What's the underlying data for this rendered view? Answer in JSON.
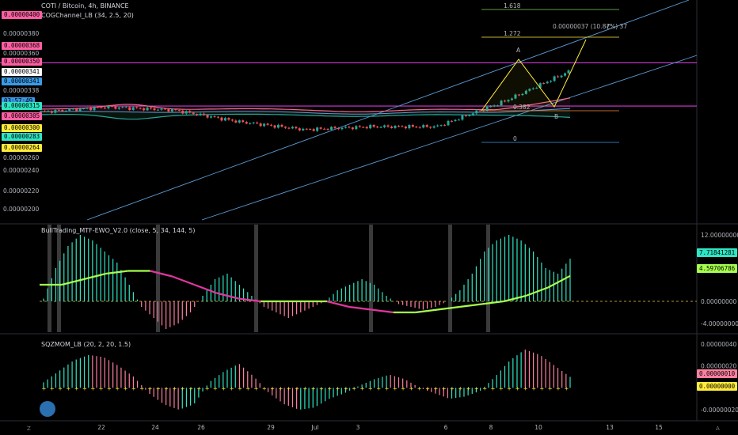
{
  "header": {
    "symbol": "COTI / Bitcoin, 4h, BINANCE",
    "indicator_main": "COGChannel_LB (34, 2.5, 20)",
    "indicator_ewo": "BullTrading_MTF-EWO_V2.0 (close, 5, 34, 144, 5)",
    "indicator_sqz": "SQZMOM_LB (20, 2, 20, 1.5)"
  },
  "left_tags": [
    {
      "text": "0.00000400",
      "bg": "#ff5fa2"
    },
    {
      "text": "0.00000368",
      "bg": "#ff5fa2"
    },
    {
      "text": "0.00000350",
      "bg": "#ff5fa2"
    },
    {
      "text": "0.00000341",
      "bg": "#ffffff"
    },
    {
      "text": "0.00000341",
      "bg": "#3a9be8"
    },
    {
      "text": "03:57:49",
      "bg": "#3a9be8"
    },
    {
      "text": "0.00000315",
      "bg": "#2ee6c4"
    },
    {
      "text": "0.00000305",
      "bg": "#ff5fa2"
    },
    {
      "text": "0.00000300",
      "bg": "#ffeb3b"
    },
    {
      "text": "0.00000283",
      "bg": "#2ee6c4"
    },
    {
      "text": "0.00000264",
      "bg": "#ffeb3b"
    }
  ],
  "price_axis": [
    "0.00000380",
    "0.00000360",
    "0.00000338",
    "0.00000260",
    "0.00000240",
    "0.00000220",
    "0.00000200"
  ],
  "ewo_axis": [
    "12.00000000",
    "0.00000000",
    "-4.00000000"
  ],
  "ewo_tags": [
    {
      "text": "7.71841281",
      "bg": "#2ee6c4"
    },
    {
      "text": "4.59706786",
      "bg": "#a6ff4d"
    }
  ],
  "sqz_axis": [
    "0.00000040",
    "0.00000020",
    "-0.00000020"
  ],
  "sqz_tags": [
    {
      "text": "0.00000010",
      "bg": "#ff7fa0"
    },
    {
      "text": "0.00000000",
      "bg": "#ffeb3b"
    }
  ],
  "time_axis": [
    "22",
    "24",
    "26",
    "29",
    "Jul",
    "3",
    "6",
    "8",
    "10",
    "13",
    "15"
  ],
  "fib": {
    "levels": [
      "1.618",
      "1.272",
      "0.382",
      "0"
    ],
    "points": [
      "A",
      "B",
      "C"
    ],
    "measure": "0.00000037 (10.87%) 37"
  },
  "corner": {
    "left": "Z",
    "right": "A"
  },
  "colors": {
    "bull": "#26a69a",
    "bear": "#ef5350",
    "channel": "#5b9bd5",
    "upper_band": "#f06a8a",
    "lower_band": "#4cc38a",
    "magenta_line": "#d23ad6",
    "ewo_pos": "#2ee6c4",
    "ewo_neg": "#ff7fa0",
    "signal": "#a6ff4d",
    "signal_neg": "#e0369f"
  },
  "chart_data": [
    {
      "type": "line",
      "title": "COTI / Bitcoin, 4h, BINANCE",
      "ylim": [
        1.9e-06,
        4.1e-06
      ],
      "x": [
        "22",
        "24",
        "26",
        "29",
        "Jul",
        "3",
        "6",
        "8",
        "10"
      ],
      "series": [
        {
          "name": "close",
          "values": [
            3e-06,
            3.05e-06,
            3.02e-06,
            2.9e-06,
            2.82e-06,
            2.85e-06,
            2.85e-06,
            3.1e-06,
            3.41e-06
          ]
        }
      ]
    },
    {
      "type": "bar",
      "title": "BullTrading_MTF-EWO_V2.0 (close, 5, 34, 144, 5)",
      "ylim": [
        -5,
        13
      ],
      "series": [
        {
          "name": "EWO",
          "values": [
            0.5,
            6,
            10,
            12,
            11,
            9,
            7,
            3,
            -1,
            -3,
            -5,
            -4,
            -2,
            1,
            4,
            5,
            3,
            1,
            -1,
            -2,
            -3,
            -2,
            -1,
            0,
            2,
            3,
            4,
            3,
            1,
            -0.5,
            -1,
            -1.5,
            -1,
            0,
            2,
            5,
            9,
            11,
            12,
            11,
            9,
            6,
            5,
            7.7
          ]
        },
        {
          "name": "signal",
          "values": [
            3,
            3,
            4,
            5,
            5.5,
            5.5,
            4.5,
            3,
            1.5,
            0.5,
            0,
            0,
            0,
            0,
            -1,
            -1.5,
            -2,
            -2,
            -1.5,
            -1,
            -0.5,
            0,
            1,
            2.5,
            4.6
          ]
        }
      ]
    },
    {
      "type": "bar",
      "title": "SQZMOM_LB (20, 2, 20, 1.5)",
      "ylim": [
        -2.5e-07,
        4.5e-07
      ],
      "series": [
        {
          "name": "momentum",
          "values": [
            0.05,
            0.15,
            0.25,
            0.3,
            0.28,
            0.2,
            0.1,
            -0.05,
            -0.15,
            -0.2,
            -0.15,
            0.05,
            0.15,
            0.22,
            0.1,
            -0.05,
            -0.15,
            -0.2,
            -0.18,
            -0.1,
            -0.05,
            0.02,
            0.08,
            0.12,
            0.08,
            0.0,
            -0.05,
            -0.1,
            -0.08,
            -0.03,
            0.1,
            0.25,
            0.35,
            0.3,
            0.2,
            0.1
          ]
        }
      ]
    }
  ]
}
